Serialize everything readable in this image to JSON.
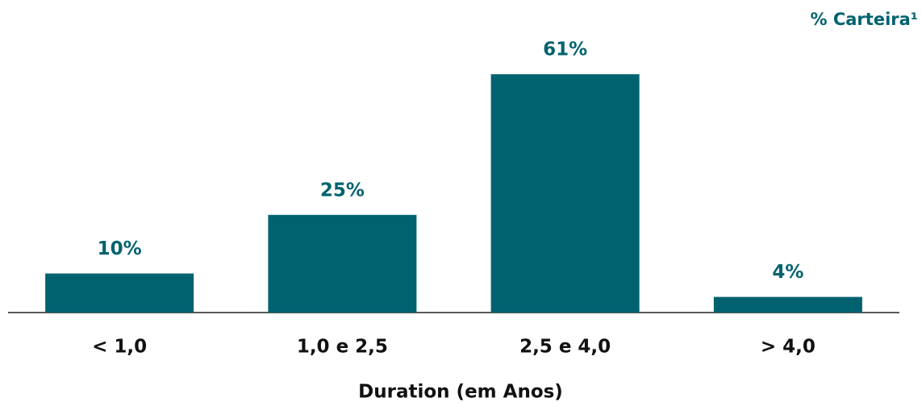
{
  "chart_data": {
    "type": "bar",
    "title": "% Carteira¹",
    "categories": [
      "< 1,0",
      "1,0 e 2,5",
      "2,5 e 4,0",
      "> 4,0"
    ],
    "values": [
      10,
      25,
      61,
      4
    ],
    "value_labels": [
      "10%",
      "25%",
      "61%",
      "4%"
    ],
    "color": "#00626f",
    "xlabel": "Duration (em Anos)"
  }
}
